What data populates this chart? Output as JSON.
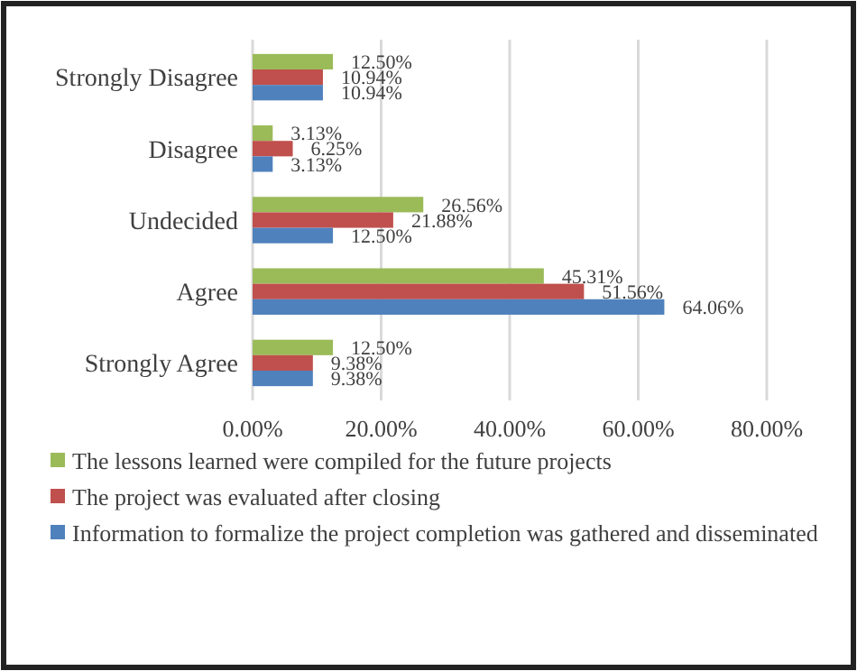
{
  "chart_data": {
    "type": "bar",
    "orientation": "horizontal",
    "categories": [
      "Strongly Disagree",
      "Disagree",
      "Undecided",
      "Agree",
      "Strongly Agree"
    ],
    "series": [
      {
        "name": "The lessons learned were compiled for the future projects",
        "color": "#9bbb59",
        "values": [
          12.5,
          3.13,
          26.56,
          45.31,
          12.5
        ],
        "value_labels": [
          "12.50%",
          "3.13%",
          "26.56%",
          "45.31%",
          "12.50%"
        ]
      },
      {
        "name": "The project was evaluated after closing",
        "color": "#c0504d",
        "values": [
          10.94,
          6.25,
          21.88,
          51.56,
          9.38
        ],
        "value_labels": [
          "10.94%",
          "6.25%",
          "21.88%",
          "51.56%",
          "9.38%"
        ]
      },
      {
        "name": "Information to formalize the project completion was gathered and disseminated",
        "color": "#4f81bd",
        "values": [
          10.94,
          3.13,
          12.5,
          64.06,
          9.38
        ],
        "value_labels": [
          "10.94%",
          "3.13%",
          "12.50%",
          "64.06%",
          "9.38%"
        ]
      }
    ],
    "xlim": [
      0,
      80
    ],
    "xticks": [
      {
        "value": 0,
        "label": "0.00%"
      },
      {
        "value": 20,
        "label": "20.00%"
      },
      {
        "value": 40,
        "label": "40.00%"
      },
      {
        "value": 60,
        "label": "60.00%"
      },
      {
        "value": 80,
        "label": "80.00%"
      }
    ],
    "grid": "x",
    "legend": "bottom"
  }
}
